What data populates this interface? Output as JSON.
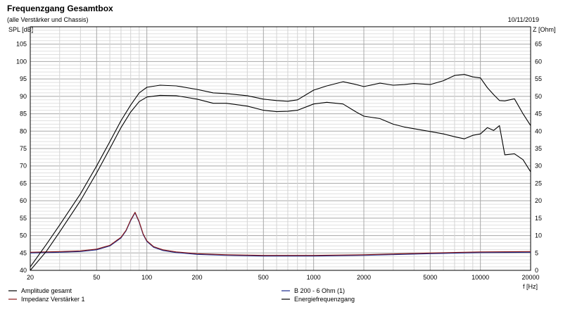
{
  "header": {
    "title": "Frequenzgang Gesamtbox",
    "subtitle": "(alle Verstärker und Chassis)",
    "date": "10/11/2019"
  },
  "chart_data": {
    "type": "line",
    "title": "Frequenzgang Gesamtbox",
    "subtitle": "(alle Verstärker und Chassis)",
    "xlabel": "f [Hz]",
    "ylabel_left": "SPL [dB]",
    "ylabel_right": "Z [Ohm]",
    "x_scale": "log",
    "xlim": [
      20,
      20000
    ],
    "ylim_left": [
      40,
      110
    ],
    "ylim_right": [
      0,
      70
    ],
    "x_tick_labels": [
      "20",
      "50",
      "100",
      "200",
      "500",
      "1000",
      "2000",
      "5000",
      "10000",
      "20000"
    ],
    "y_left_tick_labels": [
      "40",
      "45",
      "50",
      "55",
      "60",
      "65",
      "70",
      "75",
      "80",
      "85",
      "90",
      "95",
      "100",
      "105"
    ],
    "y_right_tick_labels": [
      "0",
      "5",
      "10",
      "15",
      "20",
      "25",
      "30",
      "35",
      "40",
      "45",
      "50",
      "55",
      "60",
      "65"
    ],
    "grid": true,
    "legend_placement": "bottom",
    "series": [
      {
        "name": "Amplitude gesamt",
        "axis": "left",
        "color": "#000000",
        "x": [
          20,
          25,
          30,
          40,
          50,
          60,
          70,
          80,
          90,
          100,
          120,
          150,
          200,
          250,
          300,
          400,
          500,
          600,
          700,
          800,
          1000,
          1200,
          1500,
          1800,
          2000,
          2500,
          3000,
          3500,
          4000,
          5000,
          6000,
          7000,
          8000,
          9000,
          10000,
          11000,
          12000,
          13000,
          14000,
          16000,
          18000,
          20000
        ],
        "y": [
          39.5,
          45.5,
          51,
          60,
          68,
          75,
          81,
          85.5,
          88.5,
          89.8,
          90.3,
          90.2,
          89.2,
          88,
          88,
          87.2,
          86,
          85.6,
          85.7,
          86,
          87.8,
          88.3,
          87.8,
          85.5,
          84.3,
          83.6,
          82,
          81.2,
          80.7,
          79.9,
          79.2,
          78.4,
          77.8,
          78.8,
          79.2,
          81,
          80.2,
          81.6,
          73.2,
          73.5,
          71.8,
          68.3
        ]
      },
      {
        "name": "Impedanz Verstärker 1",
        "axis": "right",
        "color": "#8b1a1a",
        "x": [
          20,
          30,
          40,
          50,
          60,
          70,
          75,
          80,
          85,
          90,
          95,
          100,
          110,
          125,
          150,
          200,
          300,
          500,
          1000,
          2000,
          5000,
          10000,
          20000
        ],
        "y": [
          5.2,
          5.4,
          5.6,
          6.1,
          7.2,
          9.5,
          11.5,
          14.5,
          16.7,
          14,
          10.5,
          8.5,
          6.8,
          5.9,
          5.3,
          4.8,
          4.5,
          4.3,
          4.3,
          4.5,
          5,
          5.3,
          5.4
        ]
      },
      {
        "name": "B 200 - 6 Ohm (1)",
        "axis": "right",
        "color": "#1a2a8b",
        "x": [
          20,
          30,
          40,
          50,
          60,
          70,
          75,
          80,
          85,
          90,
          95,
          100,
          110,
          125,
          150,
          200,
          300,
          500,
          1000,
          2000,
          5000,
          10000,
          20000
        ],
        "y": [
          5.0,
          5.2,
          5.4,
          5.9,
          7.0,
          9.3,
          11.3,
          14.3,
          16.5,
          13.8,
          10.3,
          8.3,
          6.6,
          5.7,
          5.1,
          4.6,
          4.3,
          4.1,
          4.1,
          4.3,
          4.8,
          5.1,
          5.2
        ]
      },
      {
        "name": "Energiefrequenzgang",
        "axis": "left",
        "color": "#000000",
        "x": [
          20,
          25,
          30,
          40,
          50,
          60,
          70,
          80,
          90,
          100,
          120,
          150,
          200,
          250,
          300,
          400,
          500,
          600,
          700,
          800,
          1000,
          1200,
          1500,
          1800,
          2000,
          2500,
          3000,
          3500,
          4000,
          5000,
          6000,
          7000,
          8000,
          9000,
          10000,
          11000,
          12000,
          13000,
          14000,
          16000,
          18000,
          20000
        ],
        "y": [
          41,
          47.5,
          53,
          62,
          70,
          77,
          83,
          87.5,
          91,
          92.6,
          93.2,
          93,
          92,
          91,
          90.8,
          90.2,
          89.2,
          88.8,
          88.6,
          89,
          91.8,
          93,
          94.2,
          93.4,
          92.8,
          93.8,
          93.2,
          93.4,
          93.7,
          93.4,
          94.5,
          96,
          96.3,
          95.6,
          95.3,
          92.5,
          90.5,
          88.8,
          88.7,
          89.3,
          85,
          81.6
        ]
      }
    ]
  }
}
